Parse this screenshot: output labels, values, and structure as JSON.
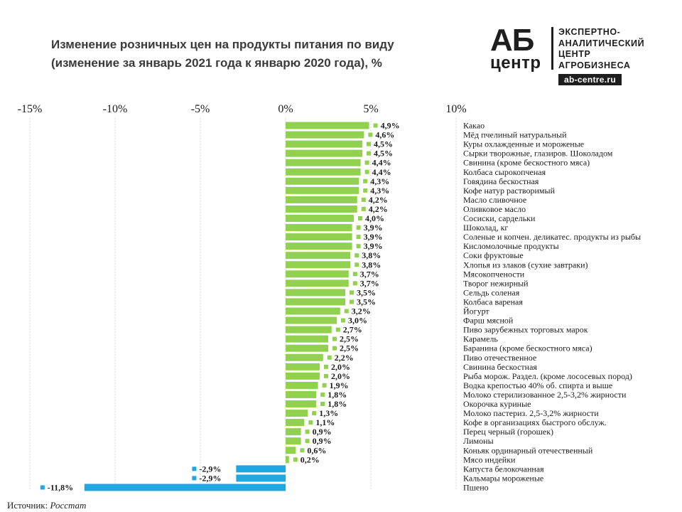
{
  "title": {
    "line1": "Изменение розничных  цен на продукты  питания по виду",
    "line2": "(изменение за январь  2021 года  к январю  2020 года), %"
  },
  "logo": {
    "main": "АБ",
    "sub": "центр",
    "lines": [
      "ЭКСПЕРТНО-",
      "АНАЛИТИЧЕСКИЙ",
      "ЦЕНТР",
      "АГРОБИЗНЕСА"
    ],
    "url": "ab-centre.ru"
  },
  "source": {
    "label": "Источник:",
    "value": "Росстат"
  },
  "colors": {
    "positive": "#92d050",
    "negative": "#1ea7e1",
    "grid": "#d9d9d9",
    "text": "#1a1a1a"
  },
  "chart_data": {
    "type": "bar",
    "orientation": "horizontal",
    "xlim": [
      -15,
      10
    ],
    "x_ticks": [
      -15,
      -10,
      -5,
      0,
      5,
      10
    ],
    "x_tick_labels": [
      "-15%",
      "-10%",
      "-5%",
      "0%",
      "5%",
      "10%"
    ],
    "categories": [
      "Какао",
      "Мёд пчелиный натуральный",
      "Куры охлажденные  и мороженые",
      "Сырки творожные, глазиров. Шоколадом",
      "Свинина (кроме бескостного мяса)",
      "Колбаса сырокопченая",
      "Говядина бескостная",
      "Кофе натур растворимый",
      "Масло сливочное",
      "Оливковое масло",
      "Сосиски, сардельки",
      "Шоколад, кг",
      "Соленые и копчен. деликатес.  продукты из рыбы",
      "Кисломолочные продукты",
      "Соки фруктовые",
      "Хлопья из злаков (сухие завтраки)",
      "Мясокопчености",
      "Творог нежирный",
      "Сельдь  соленая",
      "Колбаса вареная",
      "Йогурт",
      "Фарш мясной",
      "Пиво зарубежных торговых марок",
      "Карамель",
      "Баранина (кроме бескостного мяса)",
      "Пиво отечественное",
      "Свинина  бескостная",
      "Рыба морож. Раздел. (кроме лососевых пород)",
      "Водка крепостью 40% об. спирта и выше",
      "Молоко стерилизованное  2,5-3,2%  жирности",
      "Окорочка куриные",
      "Молоко пастериз. 2,5-3,2%  жирности",
      "Кофе в организациях быстрого обслуж.",
      "Перец черный (горошек)",
      "Лимоны",
      "Коньяк ординарный отечественный",
      "Мясо индейки",
      "Капуста белокочанная",
      "Кальмары мороженые",
      "Пшено"
    ],
    "values": [
      4.9,
      4.6,
      4.5,
      4.5,
      4.4,
      4.4,
      4.3,
      4.3,
      4.2,
      4.2,
      4.0,
      3.9,
      3.9,
      3.9,
      3.8,
      3.8,
      3.7,
      3.7,
      3.5,
      3.5,
      3.2,
      3.0,
      2.7,
      2.5,
      2.5,
      2.2,
      2.0,
      2.0,
      1.9,
      1.8,
      1.8,
      1.3,
      1.1,
      0.9,
      0.9,
      0.6,
      0.2,
      -2.9,
      -2.9,
      -11.8
    ],
    "value_labels": [
      "4,9%",
      "4,6%",
      "4,5%",
      "4,5%",
      "4,4%",
      "4,4%",
      "4,3%",
      "4,3%",
      "4,2%",
      "4,2%",
      "4,0%",
      "3,9%",
      "3,9%",
      "3,9%",
      "3,8%",
      "3,8%",
      "3,7%",
      "3,7%",
      "3,5%",
      "3,5%",
      "3,2%",
      "3,0%",
      "2,7%",
      "2,5%",
      "2,5%",
      "2,2%",
      "2,0%",
      "2,0%",
      "1,9%",
      "1,8%",
      "1,8%",
      "1,3%",
      "1,1%",
      "0,9%",
      "0,9%",
      "0,6%",
      "0,2%",
      "-2,9%",
      "-2,9%",
      "-11,8%"
    ],
    "grid": true
  }
}
